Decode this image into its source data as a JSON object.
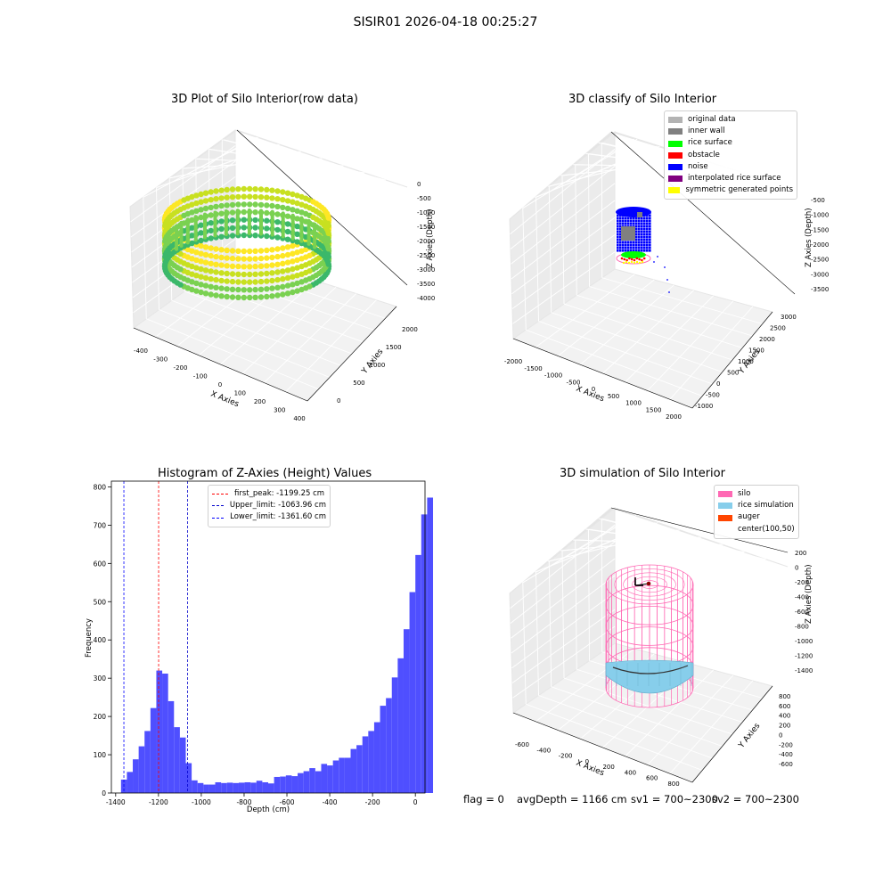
{
  "suptitle": "SISIR01 2026-04-18 00:25:27",
  "chart_data": [
    {
      "type": "scatter",
      "subtype": "3d",
      "title": "3D Plot of Silo Interior(row data)",
      "xlabel": "X Axies",
      "ylabel": "Y Axies",
      "zlabel": "Z Axies (Depth)",
      "xticks": [
        -400,
        -300,
        -200,
        -100,
        0,
        100,
        200,
        300,
        400
      ],
      "yticks": [
        0,
        500,
        1000,
        1500,
        2000
      ],
      "zticks": [
        0,
        -500,
        -1000,
        -1500,
        -2000,
        -2500,
        -3000,
        -3500,
        -4000
      ],
      "colormap": [
        "#3bb86a",
        "#7ad151",
        "#c8e020",
        "#fde725"
      ]
    },
    {
      "type": "scatter",
      "subtype": "3d",
      "title": "3D classify of Silo Interior",
      "xlabel": "X Axies",
      "ylabel": "Y Axies",
      "zlabel": "Z Axies (Depth)",
      "xticks": [
        -2000,
        -1500,
        -1000,
        -500,
        0,
        500,
        1000,
        1500,
        2000
      ],
      "yticks": [
        -1000,
        -500,
        0,
        500,
        1000,
        1500,
        2000,
        2500,
        3000
      ],
      "zticks": [
        -500,
        -1000,
        -1500,
        -2000,
        -2500,
        -3000,
        -3500
      ],
      "legend_placement": "top-right",
      "legend": [
        {
          "label": "original data",
          "color": "#b3b3b3"
        },
        {
          "label": "inner wall",
          "color": "#808080"
        },
        {
          "label": "rice surface",
          "color": "#00ff00"
        },
        {
          "label": "obstacle",
          "color": "#ff0000"
        },
        {
          "label": "noise",
          "color": "#0000ff"
        },
        {
          "label": "interpolated rice surface",
          "color": "#800080"
        },
        {
          "label": "symmetric generated points",
          "color": "#ffff00"
        }
      ]
    },
    {
      "type": "bar",
      "subtype": "histogram",
      "title": "Histogram of Z-Axies (Height) Values",
      "xlabel": "Depth (cm)",
      "ylabel": "Frequency",
      "xlim": [
        -1420,
        45
      ],
      "ylim": [
        0,
        815
      ],
      "xticks": [
        -1400,
        -1200,
        -1000,
        -800,
        -600,
        -400,
        -200,
        0
      ],
      "yticks": [
        0,
        100,
        200,
        300,
        400,
        500,
        600,
        700,
        800
      ],
      "bar_color": "#4f4fff",
      "bin_start": -1375,
      "bin_width": 27.5,
      "values": [
        35,
        55,
        88,
        122,
        162,
        222,
        320,
        312,
        240,
        172,
        145,
        78,
        33,
        26,
        22,
        22,
        28,
        26,
        27,
        26,
        27,
        28,
        27,
        32,
        28,
        25,
        42,
        43,
        46,
        44,
        52,
        57,
        65,
        57,
        76,
        72,
        85,
        92,
        92,
        115,
        125,
        148,
        162,
        185,
        228,
        248,
        302,
        352,
        428,
        525,
        622,
        728,
        772
      ],
      "vlines": [
        {
          "label": "first_peak: -1199.25 cm",
          "x": -1199.25,
          "color": "#ff0000"
        },
        {
          "label": "Upper_limit: -1063.96 cm",
          "x": -1063.96,
          "color": "#0000cc"
        },
        {
          "label": "Lower_limit: -1361.60 cm",
          "x": -1361.6,
          "color": "#0000ff"
        }
      ],
      "legend_placement": "top-center"
    },
    {
      "type": "scatter",
      "subtype": "3d",
      "title": "3D simulation of Silo Interior",
      "xlabel": "X Axies",
      "ylabel": "Y Axies",
      "zlabel": "Z Axies (Depth)",
      "xticks": [
        -600,
        -400,
        -200,
        0,
        200,
        400,
        600,
        800
      ],
      "yticks": [
        -600,
        -400,
        -200,
        0,
        200,
        400,
        600,
        800
      ],
      "zticks": [
        200,
        0,
        -200,
        -400,
        -600,
        -800,
        -1000,
        -1200,
        -1400
      ],
      "legend_placement": "top-right",
      "legend": [
        {
          "label": "silo",
          "color": "#ff69b4"
        },
        {
          "label": "rice simulation",
          "color": "#87ceeb"
        },
        {
          "label": "auger",
          "color": "#ff4500"
        },
        {
          "label": "center(100,50)",
          "color": "#ffffff"
        }
      ]
    }
  ],
  "footer": {
    "flag": "flag = 0",
    "avg": "avgDepth = 1166 cm",
    "sv1": "sv1 = 700~2300",
    "sv2": "sv2 = 700~2300"
  }
}
